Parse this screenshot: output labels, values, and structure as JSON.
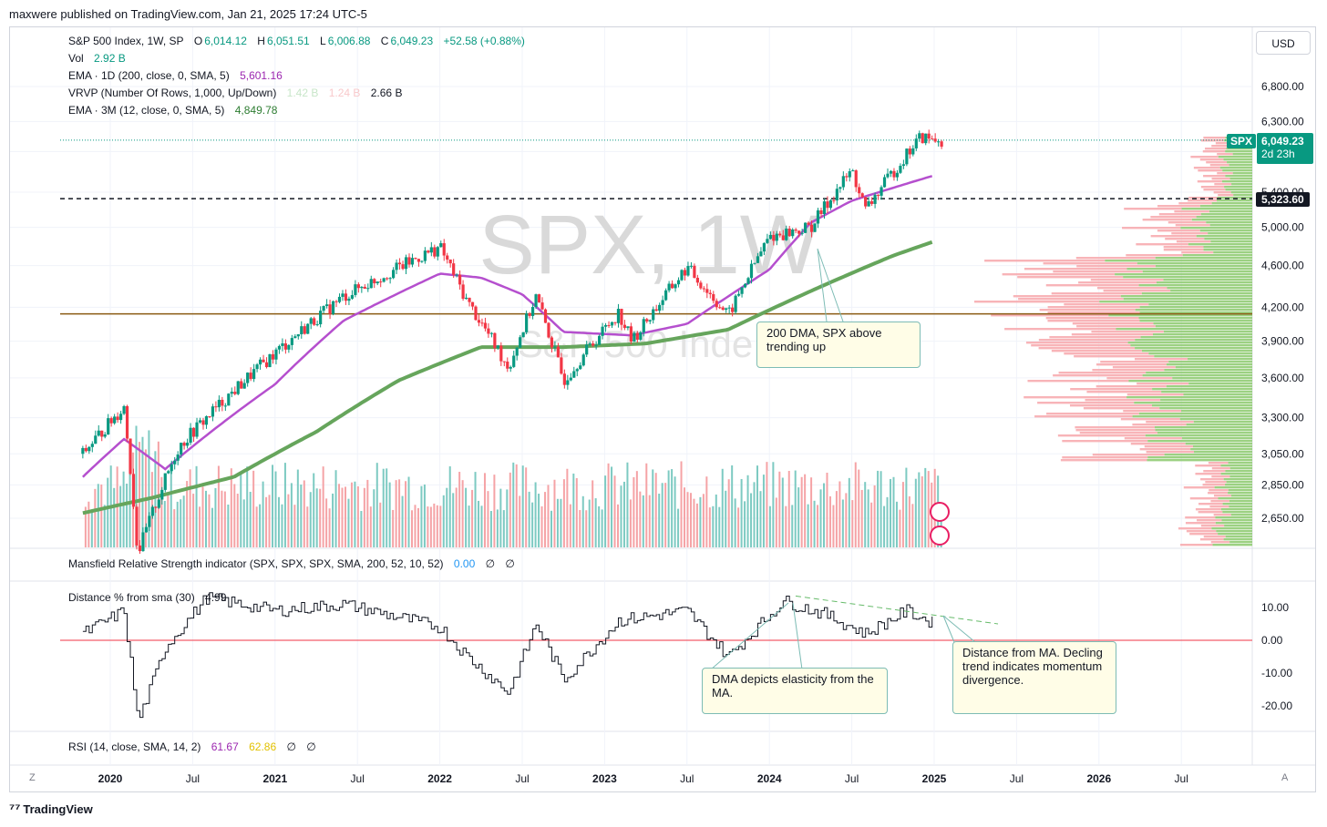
{
  "attribution": "maxwere published on TradingView.com, Jan 21, 2025 17:24 UTC-5",
  "brand": "TradingView",
  "currency_button": "USD",
  "watermark": {
    "symbol": "SPX, 1W",
    "name": "S&P 500 Inde"
  },
  "legend": {
    "title": "S&P 500 Index, 1W, SP",
    "open_label": "O",
    "open": "6,014.12",
    "high_label": "H",
    "high": "6,051.51",
    "low_label": "L",
    "low": "6,006.88",
    "close_label": "C",
    "close": "6,049.23",
    "change": "+52.58 (+0.88%)",
    "vol_label": "Vol",
    "vol": "2.92 B",
    "ema1_label": "EMA · 1D (200, close, 0, SMA, 5)",
    "ema1": "5,601.16",
    "vrvp_label": "VRVP (Number Of Rows, 1,000, Up/Down)",
    "vrvp_up": "1.42 B",
    "vrvp_down": "1.24 B",
    "vrvp_total": "2.66 B",
    "ema2_label": "EMA · 3M (12, close, 0, SMA, 5)",
    "ema2": "4,849.78"
  },
  "price_tags": {
    "symbol": "SPX",
    "last": "6,049.23",
    "countdown": "2d 23h",
    "line": "5,323.60"
  },
  "panes": {
    "mansfield": {
      "label": "Mansfield Relative Strength indicator (SPX, SPX, SPX, SMA, 200, 52, 10, 52)",
      "value": "0.00",
      "extra1": "∅",
      "extra2": "∅"
    },
    "distance": {
      "label": "Distance % from sma (30)",
      "value": "4.99"
    },
    "rsi": {
      "label": "RSI (14, close, SMA, 14, 2)",
      "value1": "61.67",
      "value2": "62.86",
      "extra1": "∅",
      "extra2": "∅"
    }
  },
  "callouts": {
    "dma200": "200 DMA, SPX above trending up",
    "elasticity": "DMA depicts elasticity from the MA.",
    "divergence": "Distance from MA. Decling trend indicates momentum divergence."
  },
  "axis_buttons": {
    "left": "Z",
    "right": "A"
  },
  "colors": {
    "up": "#089981",
    "down": "#f23645",
    "ema200": "#b54fce",
    "ema3m": "#66a55c",
    "vol_up": "#7dcac2",
    "vol_down": "#f5a3a6",
    "vp_up": "#8bc96c",
    "vp_down": "#f7a7ab",
    "hline": "#8a5a12"
  },
  "chart_data": [
    {
      "type": "line",
      "title": "S&P 500 Index, 1W",
      "y_ticks": [
        "6,800.00",
        "6,300.00",
        "5,900.00",
        "5,400.00",
        "5,000.00",
        "4,600.00",
        "4,200.00",
        "3,900.00",
        "3,600.00",
        "3,300.00",
        "3,050.00",
        "2,850.00",
        "2,650.00"
      ],
      "x_ticks": [
        "2020",
        "Jul",
        "2021",
        "Jul",
        "2022",
        "Jul",
        "2023",
        "Jul",
        "2024",
        "Jul",
        "2025",
        "Jul",
        "2026",
        "Jul"
      ],
      "ylim": [
        2500,
        6900
      ],
      "log_scale": true,
      "series": [
        {
          "name": "S&P 500 Index",
          "x": [
            "2019-11",
            "2020-02",
            "2020-03",
            "2020-06",
            "2020-09",
            "2021-01",
            "2021-06",
            "2022-01",
            "2022-03",
            "2022-06",
            "2022-08",
            "2022-10",
            "2023-02",
            "2023-03",
            "2023-07",
            "2023-10",
            "2024-01",
            "2024-04",
            "2024-07",
            "2024-08",
            "2024-12",
            "2025-01"
          ],
          "values": [
            3050,
            3380,
            2450,
            3100,
            3400,
            3800,
            4300,
            4790,
            4250,
            3680,
            4300,
            3580,
            4150,
            3900,
            4580,
            4120,
            4900,
            5000,
            5660,
            5190,
            6090,
            6049
          ]
        },
        {
          "name": "EMA · 1D (200, close, 0, SMA, 5)",
          "x": [
            "2019-11",
            "2020-02",
            "2020-05",
            "2020-09",
            "2021-01",
            "2021-06",
            "2022-01",
            "2022-04",
            "2022-07",
            "2022-10",
            "2023-03",
            "2023-07",
            "2023-10",
            "2024-01",
            "2024-04",
            "2024-07",
            "2025-01"
          ],
          "values": [
            2900,
            3150,
            2950,
            3250,
            3550,
            4080,
            4520,
            4480,
            4320,
            3980,
            3950,
            4050,
            4300,
            4560,
            5050,
            5300,
            5601
          ]
        },
        {
          "name": "EMA · 3M (12, close, 0, SMA, 5)",
          "x": [
            "2019-11",
            "2020-04",
            "2020-10",
            "2021-04",
            "2021-10",
            "2022-04",
            "2022-10",
            "2023-04",
            "2023-10",
            "2024-04",
            "2024-10",
            "2025-01"
          ],
          "values": [
            2680,
            2770,
            2900,
            3200,
            3580,
            3850,
            3850,
            3880,
            4000,
            4350,
            4700,
            4849.78
          ]
        }
      ],
      "hlines": [
        6049.23,
        5323.6,
        4140
      ]
    },
    {
      "type": "line",
      "title": "Distance % from sma (30)",
      "y_ticks": [
        "10.00",
        "0.00",
        "-10.00",
        "-20.00"
      ],
      "ylim": [
        -25,
        14
      ],
      "series": [
        {
          "name": "Distance % from sma (30)",
          "x": [
            "2019-11",
            "2020-02",
            "2020-03",
            "2020-05",
            "2020-08",
            "2021-01",
            "2021-06",
            "2022-01",
            "2022-03",
            "2022-06",
            "2022-08",
            "2022-10",
            "2023-02",
            "2023-07",
            "2023-10",
            "2024-02",
            "2024-05",
            "2024-08",
            "2024-11",
            "2025-01"
          ],
          "values": [
            2,
            9,
            -25,
            -2,
            13,
            9,
            11,
            4,
            -5,
            -16,
            5,
            -12,
            6,
            9,
            -5,
            12,
            8,
            2,
            9,
            4.99
          ]
        }
      ]
    }
  ]
}
